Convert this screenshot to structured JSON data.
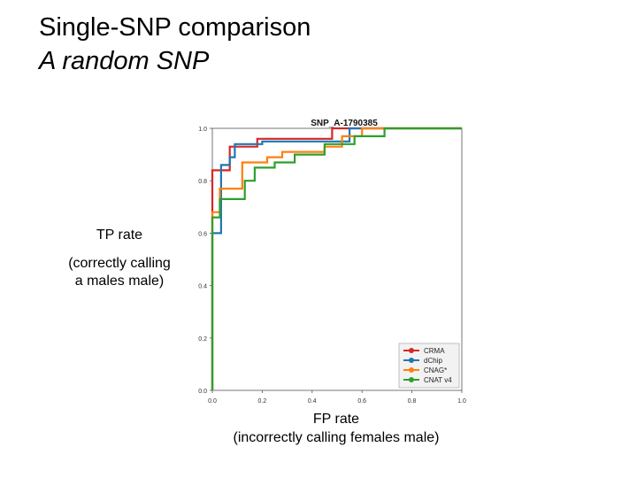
{
  "slide": {
    "title": "Single-SNP comparison",
    "subtitle": "A random SNP",
    "y_axis_label": "TP rate",
    "y_axis_sublabel_line1": "(correctly calling",
    "y_axis_sublabel_line2": "a males male)",
    "x_axis_label": "FP rate",
    "x_axis_sublabel": "(incorrectly calling females male)"
  },
  "chart_data": {
    "type": "line",
    "title": "SNP_A-1790385",
    "xlim": [
      0,
      1
    ],
    "ylim": [
      0,
      1
    ],
    "x_ticks": [
      "0.0",
      "0.2",
      "0.4",
      "0.6",
      "0.8",
      "1.0"
    ],
    "y_ticks": [
      "0.0",
      "0.2",
      "0.4",
      "0.6",
      "0.8",
      "1.0"
    ],
    "grid": true,
    "legend_position": "bottom-right",
    "series": [
      {
        "name": "CRMA",
        "color": "#d62728",
        "points": [
          [
            0,
            0
          ],
          [
            0,
            0.84
          ],
          [
            0.07,
            0.84
          ],
          [
            0.07,
            0.93
          ],
          [
            0.18,
            0.93
          ],
          [
            0.18,
            0.96
          ],
          [
            0.48,
            0.96
          ],
          [
            0.48,
            1.0
          ],
          [
            1,
            1.0
          ]
        ]
      },
      {
        "name": "dChip",
        "color": "#1f77b4",
        "points": [
          [
            0,
            0
          ],
          [
            0,
            0.6
          ],
          [
            0.035,
            0.6
          ],
          [
            0.035,
            0.86
          ],
          [
            0.07,
            0.86
          ],
          [
            0.07,
            0.89
          ],
          [
            0.09,
            0.89
          ],
          [
            0.09,
            0.94
          ],
          [
            0.2,
            0.94
          ],
          [
            0.2,
            0.95
          ],
          [
            0.55,
            0.95
          ],
          [
            0.55,
            1.0
          ],
          [
            1,
            1.0
          ]
        ]
      },
      {
        "name": "CNAG*",
        "color": "#ff7f0e",
        "points": [
          [
            0,
            0
          ],
          [
            0,
            0.68
          ],
          [
            0.03,
            0.68
          ],
          [
            0.03,
            0.77
          ],
          [
            0.12,
            0.77
          ],
          [
            0.12,
            0.87
          ],
          [
            0.22,
            0.87
          ],
          [
            0.22,
            0.89
          ],
          [
            0.28,
            0.89
          ],
          [
            0.28,
            0.91
          ],
          [
            0.45,
            0.91
          ],
          [
            0.45,
            0.93
          ],
          [
            0.52,
            0.93
          ],
          [
            0.52,
            0.97
          ],
          [
            0.6,
            0.97
          ],
          [
            0.6,
            1.0
          ],
          [
            1,
            1.0
          ]
        ]
      },
      {
        "name": "CNAT v4",
        "color": "#2ca02c",
        "points": [
          [
            0,
            0
          ],
          [
            0,
            0.66
          ],
          [
            0.03,
            0.66
          ],
          [
            0.03,
            0.73
          ],
          [
            0.13,
            0.73
          ],
          [
            0.13,
            0.8
          ],
          [
            0.17,
            0.8
          ],
          [
            0.17,
            0.85
          ],
          [
            0.25,
            0.85
          ],
          [
            0.25,
            0.87
          ],
          [
            0.33,
            0.87
          ],
          [
            0.33,
            0.9
          ],
          [
            0.45,
            0.9
          ],
          [
            0.45,
            0.94
          ],
          [
            0.57,
            0.94
          ],
          [
            0.57,
            0.97
          ],
          [
            0.69,
            0.97
          ],
          [
            0.69,
            1.0
          ],
          [
            1,
            1.0
          ]
        ]
      }
    ]
  }
}
